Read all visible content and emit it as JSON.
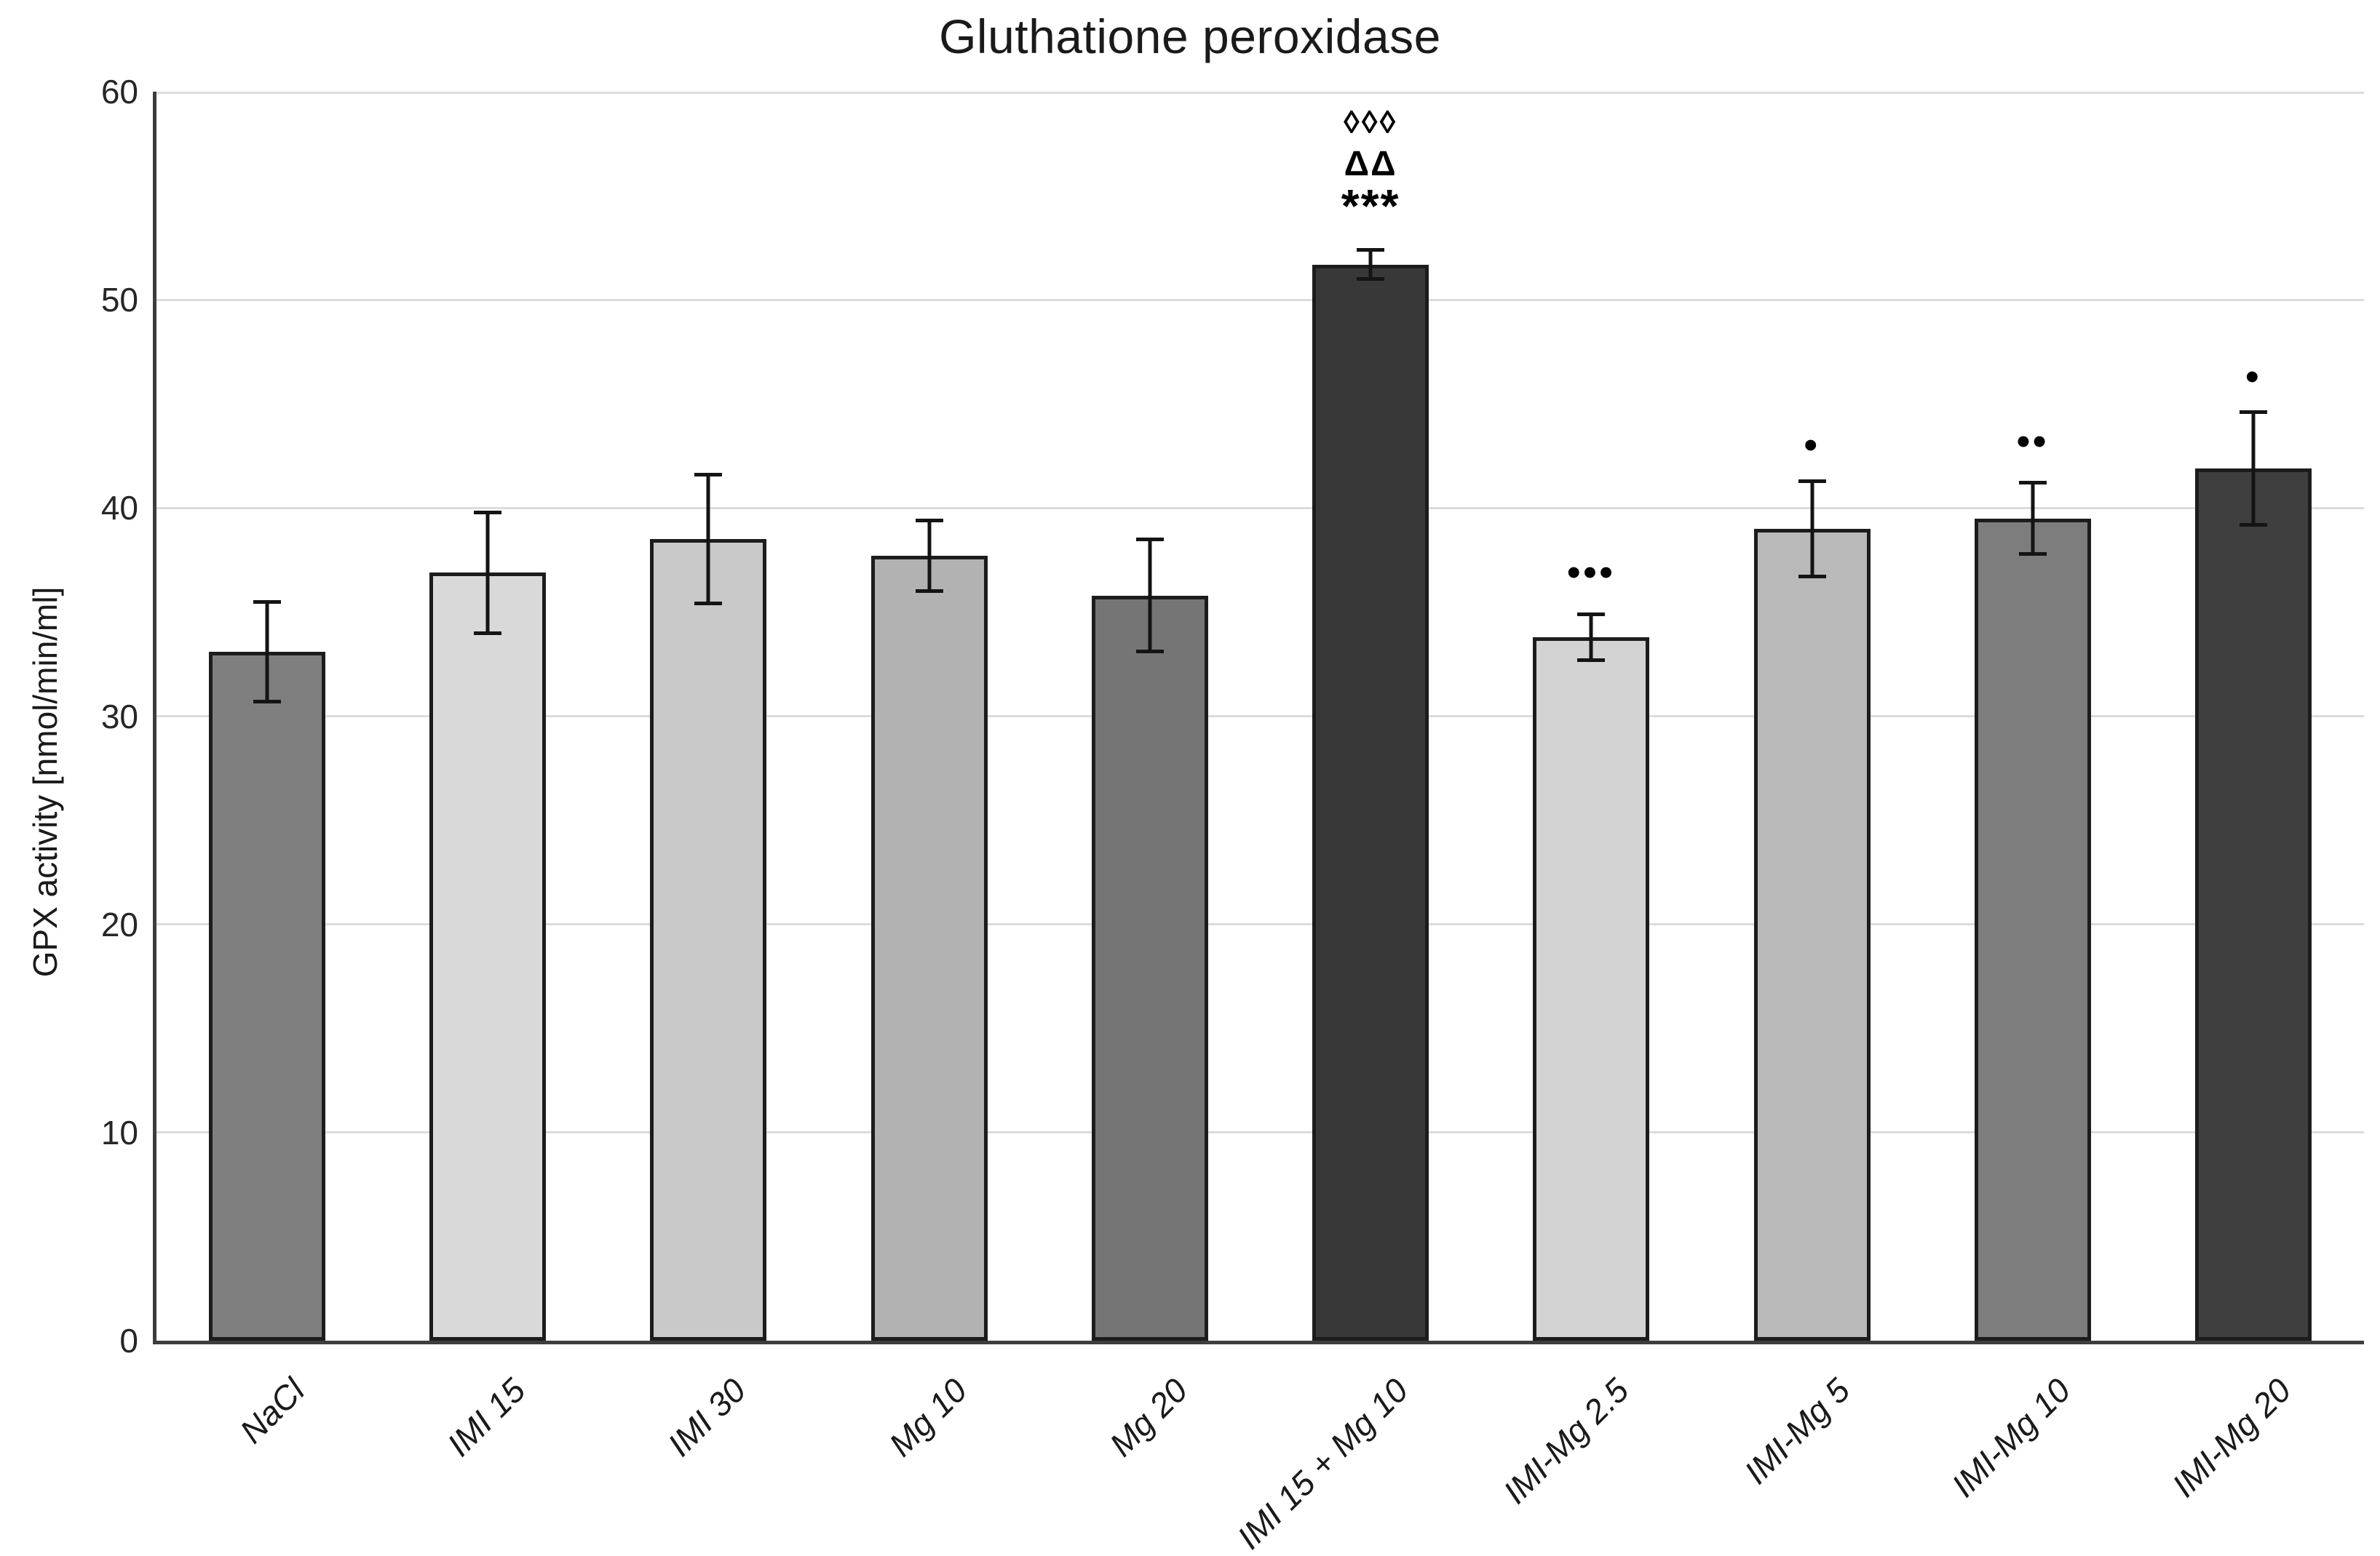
{
  "page": {
    "background": "#ffffff"
  },
  "chart_data": {
    "type": "bar",
    "title": "Gluthatione peroxidase",
    "xlabel": "",
    "ylabel": "GPX activity [nmol/min/ml]",
    "ylim": [
      0,
      60
    ],
    "y_ticks": [
      0,
      10,
      20,
      30,
      40,
      50,
      60
    ],
    "grid": "horizontal gridlines every 10 units",
    "legend": "none",
    "categories": [
      "NaCl",
      "IMI 15",
      "IMI 30",
      "Mg 10",
      "Mg 20",
      "IMI 15 + Mg 10",
      "IMI-Mg 2.5",
      "IMI-Mg 5",
      "IMI-Mg 10",
      "IMI-Mg 20"
    ],
    "series": [
      {
        "name": "GPX activity [nmol/min/ml]",
        "values": [
          33.1,
          36.9,
          38.5,
          37.7,
          35.8,
          51.7,
          33.8,
          39.0,
          39.5,
          41.9
        ],
        "errors": [
          2.4,
          2.9,
          3.1,
          1.7,
          2.7,
          0.7,
          1.1,
          2.3,
          1.7,
          2.7
        ]
      }
    ],
    "bar_colors": [
      "#7f7f7f",
      "#d9d9d9",
      "#c9c9c9",
      "#b2b2b2",
      "#757575",
      "#383838",
      "#d3d3d3",
      "#b9b9b9",
      "#7d7d7d",
      "#3f3f3f"
    ],
    "annotations": [
      {
        "category": "IMI 15 + Mg 10",
        "index": 5,
        "lines": [
          "◊◊◊",
          "ΔΔ",
          "***"
        ],
        "base_value": 54.5
      },
      {
        "category": "IMI-Mg 2.5",
        "index": 6,
        "lines": [
          "•••"
        ],
        "base_value": 36.9
      },
      {
        "category": "IMI-Mg 5",
        "index": 7,
        "lines": [
          "•"
        ],
        "base_value": 43.0
      },
      {
        "category": "IMI-Mg 10",
        "index": 8,
        "lines": [
          "••"
        ],
        "base_value": 43.2
      },
      {
        "category": "IMI-Mg 20",
        "index": 9,
        "lines": [
          "•"
        ],
        "base_value": 46.3
      }
    ]
  },
  "colors": {
    "axis": "#3d3d3d",
    "gridline": "#dcdcdc",
    "bar_border": "#1c1c1c",
    "error_bar": "#141414",
    "text": "#1a1a1a"
  }
}
